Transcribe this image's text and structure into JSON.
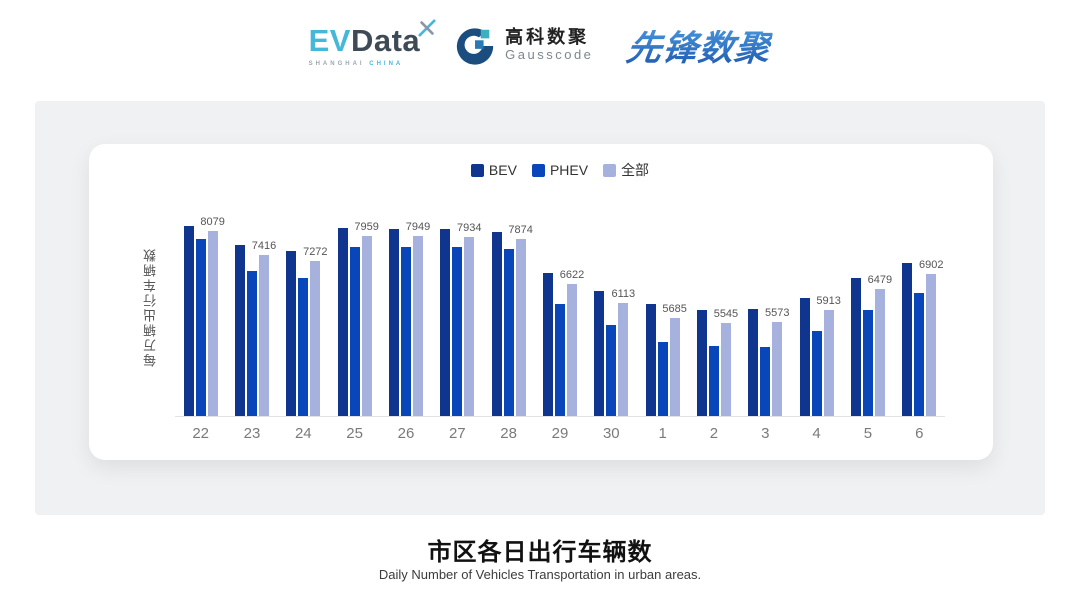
{
  "header": {
    "evdata": {
      "ev": "EV",
      "data": "Data",
      "sub_left": "SHANGHAI",
      "sub_right": "CHINA"
    },
    "gausscode": {
      "cn": "高科数聚",
      "en": "Gausscode"
    },
    "pioneer": {
      "text": "先锋数聚"
    }
  },
  "chart": {
    "y_axis_label": "每万辆出行车辆数"
  },
  "chart_data": {
    "type": "bar",
    "title": "市区各日出行车辆数",
    "ylabel": "每万辆出行车辆数",
    "xlabel": "",
    "categories": [
      "22",
      "23",
      "24",
      "25",
      "26",
      "27",
      "28",
      "29",
      "30",
      "1",
      "2",
      "3",
      "4",
      "5",
      "6"
    ],
    "series": [
      {
        "name": "BEV",
        "color": "#10358e",
        "values": [
          8230,
          7695,
          7550,
          8180,
          8145,
          8140,
          8070,
          6940,
          6435,
          6090,
          5910,
          5935,
          6255,
          6790,
          7220
        ]
      },
      {
        "name": "PHEV",
        "color": "#0946ba",
        "values": [
          7870,
          6985,
          6785,
          7660,
          7640,
          7640,
          7580,
          6090,
          5505,
          5040,
          4925,
          4905,
          5335,
          5915,
          6375
        ]
      },
      {
        "name": "全部",
        "color": "#a6b1dd",
        "values": [
          8079,
          7416,
          7272,
          7959,
          7949,
          7934,
          7874,
          6622,
          6113,
          5685,
          5545,
          5573,
          5913,
          6479,
          6902
        ]
      }
    ],
    "label_series": "全部",
    "data_labels": [
      8079,
      7416,
      7272,
      7959,
      7949,
      7934,
      7874,
      6622,
      6113,
      5685,
      5545,
      5573,
      5913,
      6479,
      6902
    ],
    "ylim": [
      3000,
      8500
    ],
    "grid": false,
    "legend_position": "top"
  },
  "footer": {
    "title": "市区各日出行车辆数",
    "subtitle": "Daily Number of Vehicles Transportation in urban areas."
  }
}
